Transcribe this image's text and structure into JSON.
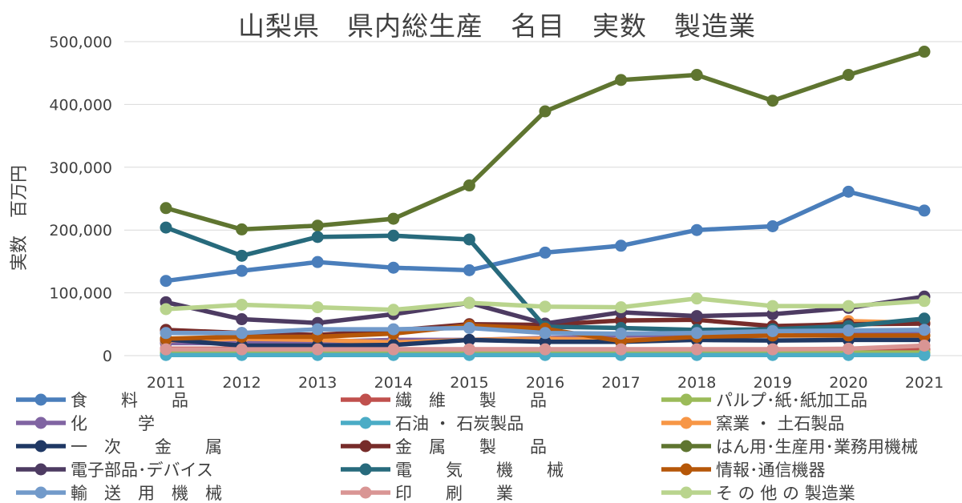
{
  "chart_data": {
    "type": "line",
    "title": "山梨県　県内総生産　名目　実数　製造業",
    "ylabel": "実数　百万円",
    "xlabel": "",
    "ylim": [
      0,
      500000
    ],
    "yticks": [
      "0",
      "100,000",
      "200,000",
      "300,000",
      "400,000",
      "500,000"
    ],
    "yticks_values": [
      0,
      100000,
      200000,
      300000,
      400000,
      500000
    ],
    "categories": [
      "2011",
      "2012",
      "2013",
      "2014",
      "2015",
      "2016",
      "2017",
      "2018",
      "2019",
      "2020",
      "2021"
    ],
    "legend_position": "bottom",
    "series": [
      {
        "name": "食　　料　　品",
        "color": "#4a7ebb",
        "values": [
          119000,
          135000,
          149000,
          140000,
          136000,
          164000,
          175000,
          200000,
          206000,
          261000,
          231000
        ]
      },
      {
        "name": "繊　維　　製　　品",
        "color": "#c0504d",
        "values": [
          11000,
          11000,
          10000,
          10000,
          10000,
          10000,
          10000,
          10000,
          10000,
          10000,
          10000
        ]
      },
      {
        "name": "パルプ･紙･紙加工品",
        "color": "#9bbb59",
        "values": [
          5000,
          5000,
          5000,
          5000,
          5000,
          5000,
          5000,
          5000,
          5000,
          5000,
          5000
        ]
      },
      {
        "name": "化　　　学",
        "color": "#8064a2",
        "values": [
          20000,
          20000,
          22000,
          25000,
          25000,
          28000,
          30000,
          32000,
          32000,
          35000,
          38000
        ]
      },
      {
        "name": "石油 ・ 石炭製品",
        "color": "#4bacc6",
        "values": [
          1000,
          1000,
          1000,
          1000,
          1000,
          1000,
          1000,
          1000,
          1000,
          1000,
          1000
        ]
      },
      {
        "name": "窯業 ・ 土石製品",
        "color": "#f79646",
        "values": [
          24000,
          27000,
          25000,
          21000,
          25000,
          27000,
          25000,
          27000,
          33000,
          55000,
          52000
        ]
      },
      {
        "name": "一　次　　金　　属",
        "color": "#1f3864",
        "values": [
          26000,
          16000,
          16000,
          17000,
          25000,
          22000,
          22000,
          25000,
          24000,
          25000,
          25000
        ]
      },
      {
        "name": "金　属　　製　　品",
        "color": "#772c2a",
        "values": [
          41000,
          36000,
          33000,
          40000,
          50000,
          49000,
          56000,
          57000,
          47000,
          50000,
          51000
        ]
      },
      {
        "name": "はん用･生産用･業務用機械",
        "color": "#5f7530",
        "values": [
          235000,
          201000,
          207000,
          218000,
          271000,
          389000,
          439000,
          447000,
          406000,
          447000,
          484000
        ]
      },
      {
        "name": "電子部品･デバイス",
        "color": "#4d3b62",
        "values": [
          85000,
          58000,
          52000,
          66000,
          84000,
          51000,
          69000,
          63000,
          66000,
          76000,
          94000
        ]
      },
      {
        "name": "電　　気　　機　　械",
        "color": "#276a7c",
        "values": [
          204000,
          159000,
          189000,
          191000,
          185000,
          46000,
          44000,
          41000,
          42000,
          47000,
          59000
        ]
      },
      {
        "name": "情報･通信機器",
        "color": "#b65708",
        "values": [
          27000,
          30000,
          30000,
          35000,
          48000,
          43000,
          23000,
          30000,
          32000,
          32000,
          32000
        ]
      },
      {
        "name": "輸　送　用　機　械",
        "color": "#729aca",
        "values": [
          36000,
          36000,
          42000,
          42000,
          44000,
          36000,
          35000,
          36000,
          39000,
          40000,
          41000
        ]
      },
      {
        "name": "印　　刷　　業",
        "color": "#d99594",
        "values": [
          10000,
          10000,
          10000,
          10000,
          10000,
          10000,
          10000,
          10000,
          10000,
          11000,
          16000
        ]
      },
      {
        "name": "そ の 他 の 製造業",
        "color": "#b9d48d",
        "values": [
          74000,
          81000,
          77000,
          73000,
          84000,
          78000,
          77000,
          91000,
          79000,
          79000,
          87000
        ]
      }
    ]
  }
}
